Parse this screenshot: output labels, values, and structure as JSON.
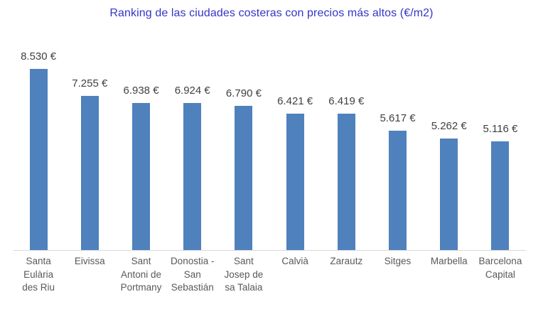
{
  "title": "Ranking de las ciudades costeras con precios más altos (€/m2)",
  "colors": {
    "bar": "#4F81BD",
    "title": "#3535C6",
    "value_label": "#404040",
    "category_label": "#595959",
    "axis_line": "#D9D9D9",
    "background": "#FFFFFF"
  },
  "chart_data": {
    "type": "bar",
    "title": "Ranking de las ciudades costeras con precios más altos (€/m2)",
    "categories": [
      "Santa Eulària des Riu",
      "Eivissa",
      "Sant Antoni de Portmany",
      "Donostia - San Sebastián",
      "Sant Josep de sa Talaia",
      "Calvià",
      "Zarautz",
      "Sitges",
      "Marbella",
      "Barcelona Capital"
    ],
    "category_label_lines": [
      [
        "Santa",
        "Eulària",
        "des Riu"
      ],
      [
        "Eivissa"
      ],
      [
        "Sant",
        "Antoni de",
        "Portmany"
      ],
      [
        "Donostia -",
        "San",
        "Sebastián"
      ],
      [
        "Sant",
        "Josep de",
        "sa Talaia"
      ],
      [
        "Calvià"
      ],
      [
        "Zarautz"
      ],
      [
        "Sitges"
      ],
      [
        "Marbella"
      ],
      [
        "Barcelona",
        "Capital"
      ]
    ],
    "values": [
      8530,
      7255,
      6938,
      6924,
      6790,
      6421,
      6419,
      5617,
      5262,
      5116
    ],
    "value_labels": [
      "8.530 €",
      "7.255 €",
      "6.938 €",
      "6.924 €",
      "6.790 €",
      "6.421 €",
      "6.419 €",
      "5.617 €",
      "5.262 €",
      "5.116 €"
    ],
    "unit": "€/m2",
    "xlabel": "",
    "ylabel": "",
    "ylim": [
      0,
      8530
    ],
    "grid": false,
    "legend": false,
    "data_labels_position": "above-bars",
    "orientation": "vertical"
  }
}
